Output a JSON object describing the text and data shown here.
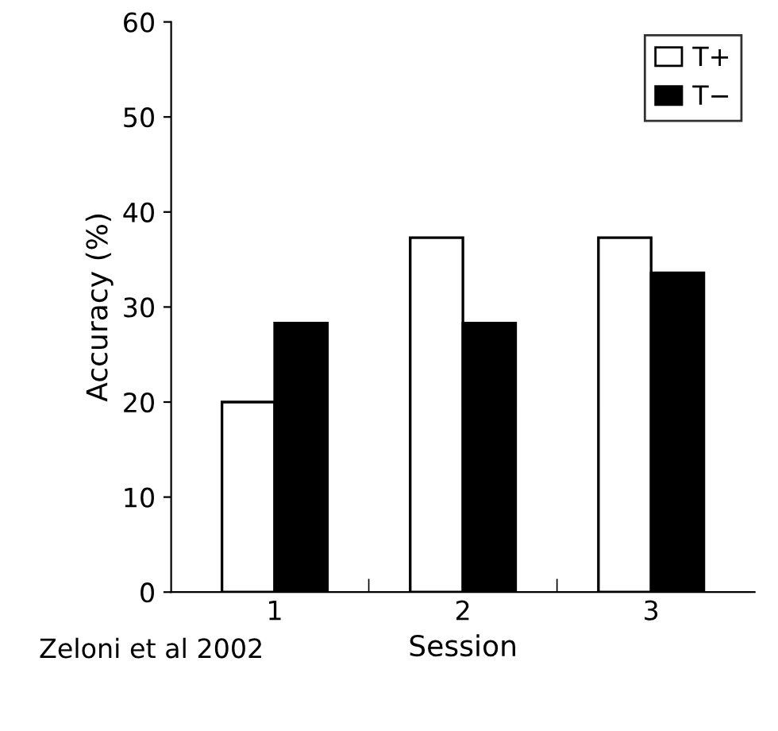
{
  "chart_data": {
    "type": "bar",
    "xlabel": "Session",
    "ylabel": "Accuracy (%)",
    "categories": [
      "1",
      "2",
      "3"
    ],
    "series": [
      {
        "name": "T+",
        "color": "#ffffff",
        "values": [
          20.0,
          37.3,
          37.3
        ]
      },
      {
        "name": "T−",
        "color": "#000000",
        "values": [
          28.3,
          28.3,
          33.6
        ]
      }
    ],
    "ylim": [
      0,
      60
    ],
    "yticks": [
      0,
      10,
      20,
      30,
      40,
      50,
      60
    ],
    "grid": false,
    "legend": "top right",
    "annotations": [
      "Zeloni et al 2002"
    ]
  }
}
